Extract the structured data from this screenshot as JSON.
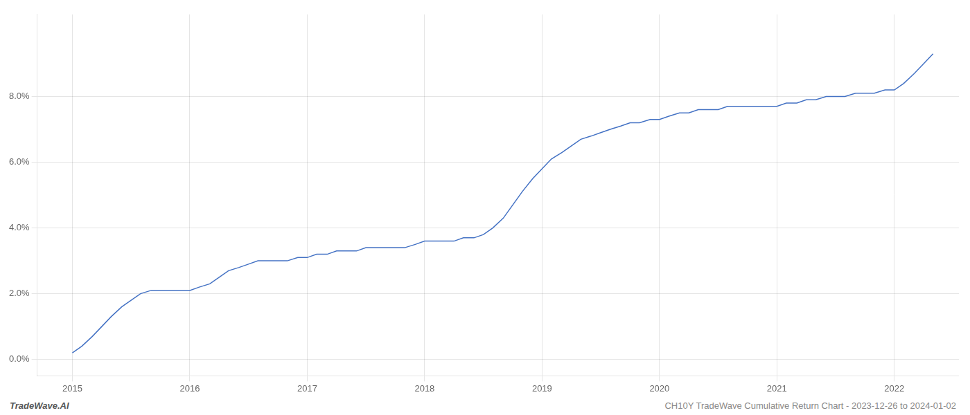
{
  "chart_data": {
    "type": "line",
    "title": "CH10Y TradeWave Cumulative Return Chart - 2023-12-26 to 2024-01-02",
    "annotations": [
      "TradeWave.AI"
    ],
    "color": "#4472c4",
    "grid": true,
    "x": [
      2015.0,
      2015.08,
      2015.17,
      2015.25,
      2015.33,
      2015.42,
      2015.5,
      2015.58,
      2015.67,
      2015.75,
      2015.83,
      2015.92,
      2016.0,
      2016.08,
      2016.17,
      2016.25,
      2016.33,
      2016.42,
      2016.5,
      2016.58,
      2016.67,
      2016.75,
      2016.83,
      2016.92,
      2017.0,
      2017.08,
      2017.17,
      2017.25,
      2017.33,
      2017.42,
      2017.5,
      2017.58,
      2017.67,
      2017.75,
      2017.83,
      2017.92,
      2018.0,
      2018.08,
      2018.17,
      2018.25,
      2018.33,
      2018.42,
      2018.5,
      2018.58,
      2018.67,
      2018.75,
      2018.83,
      2018.92,
      2019.0,
      2019.08,
      2019.17,
      2019.25,
      2019.33,
      2019.42,
      2019.5,
      2019.58,
      2019.67,
      2019.75,
      2019.83,
      2019.92,
      2020.0,
      2020.08,
      2020.17,
      2020.25,
      2020.33,
      2020.42,
      2020.5,
      2020.58,
      2020.67,
      2020.75,
      2020.83,
      2020.92,
      2021.0,
      2021.08,
      2021.17,
      2021.25,
      2021.33,
      2021.42,
      2021.5,
      2021.58,
      2021.67,
      2021.75,
      2021.83,
      2021.92,
      2022.0,
      2022.08,
      2022.17,
      2022.25,
      2022.33
    ],
    "values": [
      0.002,
      0.004,
      0.007,
      0.01,
      0.013,
      0.016,
      0.018,
      0.02,
      0.021,
      0.021,
      0.021,
      0.021,
      0.021,
      0.022,
      0.023,
      0.025,
      0.027,
      0.028,
      0.029,
      0.03,
      0.03,
      0.03,
      0.03,
      0.031,
      0.031,
      0.032,
      0.032,
      0.033,
      0.033,
      0.033,
      0.034,
      0.034,
      0.034,
      0.034,
      0.034,
      0.035,
      0.036,
      0.036,
      0.036,
      0.036,
      0.037,
      0.037,
      0.038,
      0.04,
      0.043,
      0.047,
      0.051,
      0.055,
      0.058,
      0.061,
      0.063,
      0.065,
      0.067,
      0.068,
      0.069,
      0.07,
      0.071,
      0.072,
      0.072,
      0.073,
      0.073,
      0.074,
      0.075,
      0.075,
      0.076,
      0.076,
      0.076,
      0.077,
      0.077,
      0.077,
      0.077,
      0.077,
      0.077,
      0.078,
      0.078,
      0.079,
      0.079,
      0.08,
      0.08,
      0.08,
      0.081,
      0.081,
      0.081,
      0.082,
      0.082,
      0.084,
      0.087,
      0.09,
      0.093
    ],
    "xlim": [
      2014.7,
      2022.55
    ],
    "ylim": [
      -0.005,
      0.105
    ],
    "xticks": [
      2015,
      2016,
      2017,
      2018,
      2019,
      2020,
      2021,
      2022
    ],
    "yticks": [
      {
        "value": 0.0,
        "label": "0.0%"
      },
      {
        "value": 0.02,
        "label": "2.0%"
      },
      {
        "value": 0.04,
        "label": "4.0%"
      },
      {
        "value": 0.06,
        "label": "6.0%"
      },
      {
        "value": 0.08,
        "label": "8.0%"
      }
    ]
  }
}
